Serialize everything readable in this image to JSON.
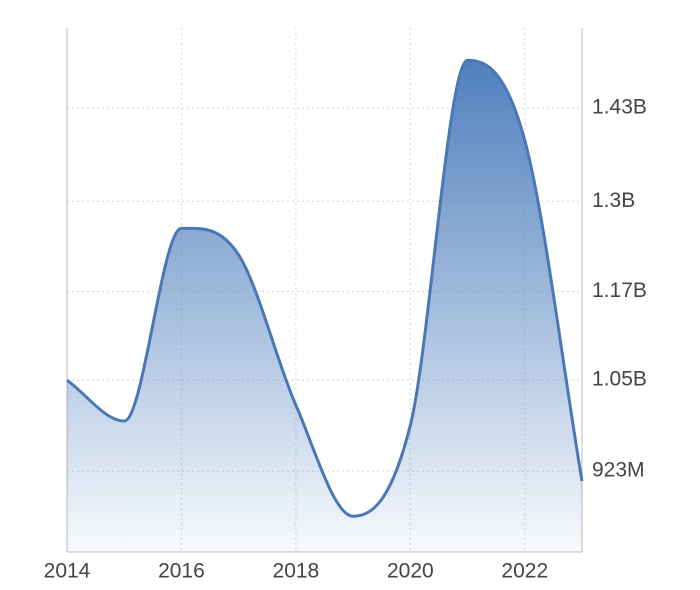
{
  "chart_data": {
    "type": "area",
    "x": [
      2014,
      2015,
      2016,
      2017,
      2018,
      2019,
      2020,
      2021,
      2022,
      2023
    ],
    "values": [
      1050000000,
      993000000,
      1262000000,
      1225000000,
      1015000000,
      860000000,
      987000000,
      1497000000,
      1385000000,
      909000000
    ],
    "color": "#4a78b5",
    "xlim": [
      2014,
      2023
    ],
    "xticks": [
      2014,
      2016,
      2018,
      2020,
      2022
    ],
    "ylim": [
      810000000,
      1542000000
    ],
    "yticks": [
      {
        "value": 923000000,
        "label": "923M"
      },
      {
        "value": 1050000000,
        "label": "1.05B"
      },
      {
        "value": 1174000000,
        "label": "1.17B"
      },
      {
        "value": 1300000000,
        "label": "1.3B"
      },
      {
        "value": 1430000000,
        "label": "1.43B"
      }
    ],
    "grid": true
  }
}
